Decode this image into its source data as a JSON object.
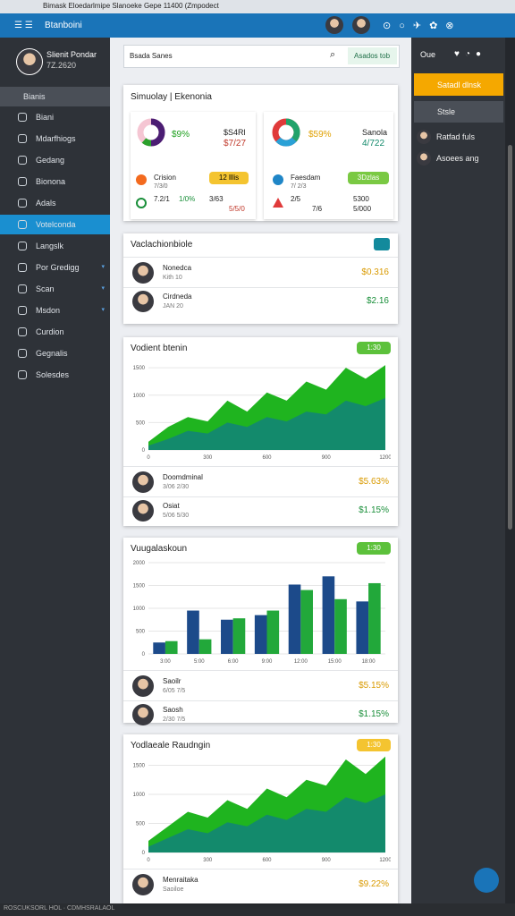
{
  "browser": {
    "tab_title": "Bimask Eloedarlmipe Slanoeke Gepe 11400 (Zmpodect"
  },
  "app": {
    "title": "Btanboini"
  },
  "sidebar": {
    "user_name": "Slienit Pondar",
    "user_sub": "7Z.2620",
    "section": "Bianis",
    "items": [
      "Biani",
      "Mdarfhiogs",
      "Gedang",
      "Bionona",
      "Adals",
      "Votelconda",
      "Langslk",
      "Por Gredigg",
      "Scan",
      "Msdon",
      "Curdion",
      "Gegnalis",
      "Solesdes"
    ]
  },
  "search": {
    "placeholder": "Bsada Sanes",
    "button": "Asados tob"
  },
  "right_panel": {
    "title": "Oue",
    "items": [
      "Satadl dlnsk",
      "Stsle",
      "Ratfad fuls",
      "Asoees ang"
    ]
  },
  "cards": [
    {
      "title": "Simuolay | Ekenonia",
      "left": {
        "percent": "$9%",
        "value1": "$S4Rl",
        "value2": "$7/27",
        "row_name": "Crision",
        "row_sub": "7/3/0",
        "badge": "12 lllis",
        "stats": [
          "7.2/1",
          "1/0%",
          "3/63",
          "5/5/0"
        ]
      },
      "right": {
        "percent": "$59%",
        "label": "Sanola",
        "value": "4/722",
        "row_name": "Faesdam",
        "row_sub": "7/ 2/3",
        "badge": "3Dzlas",
        "stats": [
          "2/5",
          "7/6",
          "5300",
          "5/000"
        ]
      }
    },
    {
      "title": "Vaclachionbiole",
      "rows": [
        {
          "name": "Nonedca",
          "sub": "Kith 10",
          "value": "$0.316"
        },
        {
          "name": "Cirdneda",
          "sub": "JAN 20",
          "value": "$2.16"
        }
      ]
    },
    {
      "title": "Vodient btenin",
      "badge": "1:30",
      "chart": {
        "type": "area",
        "x": [
          0,
          100,
          200,
          300,
          400,
          500,
          600,
          700,
          800,
          900,
          1000,
          1100,
          1200
        ],
        "xlim": [
          0,
          1200
        ],
        "xticks": [
          0,
          300,
          600,
          900,
          1200
        ],
        "ylim": [
          0,
          1600
        ],
        "yticks": [
          0,
          500,
          1000,
          1500
        ],
        "series": [
          {
            "name": "Total",
            "color": "#1fb41f",
            "values": [
              150,
              420,
              600,
              520,
              900,
              700,
              1050,
              900,
              1250,
              1100,
              1500,
              1300,
              1550
            ]
          },
          {
            "name": "Base",
            "color": "#138a6c",
            "values": [
              80,
              200,
              350,
              300,
              500,
              420,
              600,
              520,
              700,
              650,
              900,
              800,
              950
            ]
          }
        ]
      },
      "rows": [
        {
          "name": "Doomdminal",
          "sub": "3/06 2/30",
          "value": "$5.63%"
        },
        {
          "name": "Osiat",
          "sub": "5/06 5/30",
          "value": "$1.15%"
        }
      ]
    },
    {
      "title": "Vuugalaskoun",
      "badge": "1:30",
      "chart": {
        "type": "bar",
        "categories": [
          "3:00",
          "5:00",
          "6:00",
          "9:00",
          "12:00",
          "15:00",
          "18:00"
        ],
        "ylim": [
          0,
          2000
        ],
        "yticks": [
          0,
          500,
          1000,
          1500,
          2000
        ],
        "series": [
          {
            "name": "Blue",
            "color": "#1c4a8a",
            "values": [
              250,
              950,
              750,
              850,
              1520,
              1700,
              1150
            ]
          },
          {
            "name": "Green",
            "color": "#22a83a",
            "values": [
              280,
              320,
              780,
              950,
              1400,
              1200,
              1550
            ]
          }
        ]
      },
      "rows": [
        {
          "name": "Saoilr",
          "sub": "6/05 7/5",
          "value": "$5.15%"
        },
        {
          "name": "Saosh",
          "sub": "2/30 7/5",
          "value": "$1.15%"
        }
      ]
    },
    {
      "title": "Yodlaeale Raudngin",
      "badge": "1:30",
      "chart": {
        "type": "area",
        "x": [
          0,
          100,
          200,
          300,
          400,
          500,
          600,
          700,
          800,
          900,
          1000,
          1100,
          1200
        ],
        "xlim": [
          0,
          1200
        ],
        "xticks": [
          0,
          300,
          600,
          900,
          1200
        ],
        "ylim": [
          0,
          1600
        ],
        "yticks": [
          0,
          500,
          1000,
          1500
        ],
        "series": [
          {
            "name": "Total",
            "color": "#1fb41f",
            "values": [
              200,
              450,
              700,
              600,
              900,
              750,
              1100,
              950,
              1250,
              1150,
              1600,
              1350,
              1650
            ]
          },
          {
            "name": "Base",
            "color": "#138a6c",
            "values": [
              100,
              250,
              400,
              330,
              520,
              450,
              650,
              560,
              750,
              700,
              950,
              850,
              1000
            ]
          }
        ]
      },
      "rows": [
        {
          "name": "Menraitaka",
          "sub": "Saoiloe",
          "value": "$9.22%"
        }
      ]
    }
  ],
  "footer": {
    "text": "ROSCUKSORL HOL · CDMHSRALAOL"
  }
}
